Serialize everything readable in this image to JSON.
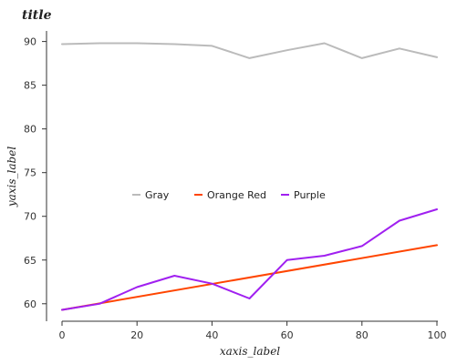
{
  "chart_data": {
    "type": "line",
    "title": "title",
    "xlabel": "xaxis_label",
    "ylabel": "yaxis_label",
    "xlim": [
      0,
      100
    ],
    "ylim": [
      58,
      91
    ],
    "x_ticks": [
      0,
      20,
      40,
      60,
      80,
      100
    ],
    "y_ticks": [
      60,
      65,
      70,
      75,
      80,
      85,
      90
    ],
    "grid": false,
    "legend_position": "center",
    "series": [
      {
        "name": "Gray",
        "color": "#bbbbbb",
        "x": [
          0,
          10,
          20,
          30,
          40,
          50,
          60,
          70,
          80,
          90,
          100
        ],
        "values": [
          89.7,
          89.8,
          89.8,
          89.7,
          89.5,
          88.1,
          89.0,
          89.8,
          88.1,
          89.2,
          88.2
        ]
      },
      {
        "name": "Orange Red",
        "color": "#ff4500",
        "x": [
          0,
          100
        ],
        "values": [
          59.3,
          66.7
        ]
      },
      {
        "name": "Purple",
        "color": "#a020f0",
        "x": [
          0,
          10,
          20,
          30,
          40,
          50,
          60,
          70,
          80,
          90,
          100
        ],
        "values": [
          59.3,
          60.0,
          61.9,
          63.2,
          62.3,
          60.6,
          65.0,
          65.5,
          66.6,
          69.5,
          70.8
        ]
      }
    ]
  }
}
